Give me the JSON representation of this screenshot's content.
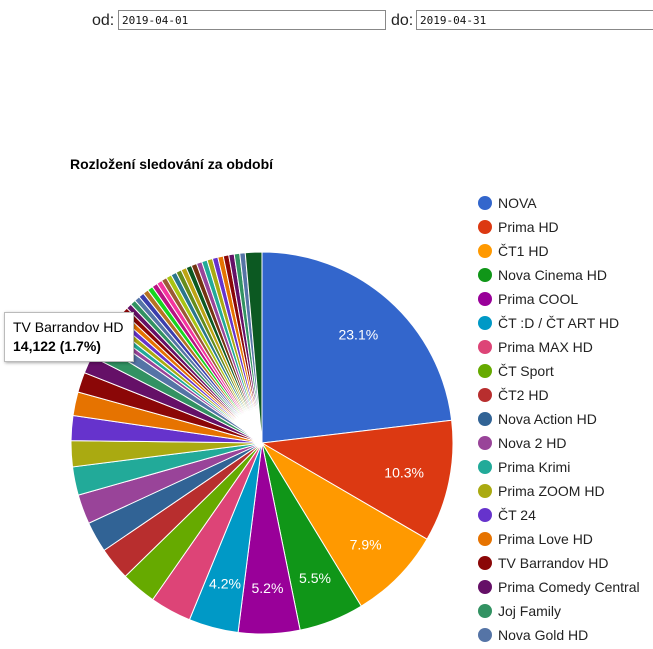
{
  "filters": {
    "from_label": "od:",
    "from_value": "2019-04-01",
    "to_label": "do:",
    "to_value": "2019-04-31"
  },
  "tooltip": {
    "name": "TV Barrandov HD",
    "value": "14,122 (1.7%)"
  },
  "chart_data": {
    "type": "pie",
    "title": "Rozložení sledování za období",
    "legend_position": "right",
    "slices": [
      {
        "name": "NOVA",
        "value": 23.1,
        "label": "23.1%",
        "color": "#3366cc"
      },
      {
        "name": "Prima HD",
        "value": 10.3,
        "label": "10.3%",
        "color": "#dc3912"
      },
      {
        "name": "ČT1 HD",
        "value": 7.9,
        "label": "7.9%",
        "color": "#ff9900"
      },
      {
        "name": "Nova Cinema HD",
        "value": 5.5,
        "label": "5.5%",
        "color": "#109618"
      },
      {
        "name": "Prima COOL",
        "value": 5.2,
        "label": "5.2%",
        "color": "#990099"
      },
      {
        "name": "ČT :D / ČT ART HD",
        "value": 4.2,
        "label": "4.2%",
        "color": "#0099c6"
      },
      {
        "name": "Prima MAX HD",
        "value": 3.5,
        "color": "#dd4477"
      },
      {
        "name": "ČT Sport",
        "value": 3.0,
        "color": "#66aa00"
      },
      {
        "name": "ČT2 HD",
        "value": 2.8,
        "color": "#b82e2e"
      },
      {
        "name": "Nova Action HD",
        "value": 2.6,
        "color": "#316395"
      },
      {
        "name": "Nova 2 HD",
        "value": 2.5,
        "color": "#994499"
      },
      {
        "name": "Prima Krimi",
        "value": 2.4,
        "color": "#22aa99"
      },
      {
        "name": "Prima ZOOM HD",
        "value": 2.2,
        "color": "#aaaa11"
      },
      {
        "name": "ČT 24",
        "value": 2.1,
        "color": "#6633cc"
      },
      {
        "name": "Prima Love HD",
        "value": 2.0,
        "color": "#e67300"
      },
      {
        "name": "TV Barrandov HD",
        "value": 1.7,
        "color": "#8b0707"
      },
      {
        "name": "Prima Comedy Central",
        "value": 1.5,
        "color": "#651067"
      },
      {
        "name": "Joj Family",
        "value": 1.2,
        "color": "#329262"
      },
      {
        "name": "Nova Gold HD",
        "value": 1.0,
        "color": "#5574a6"
      }
    ]
  }
}
